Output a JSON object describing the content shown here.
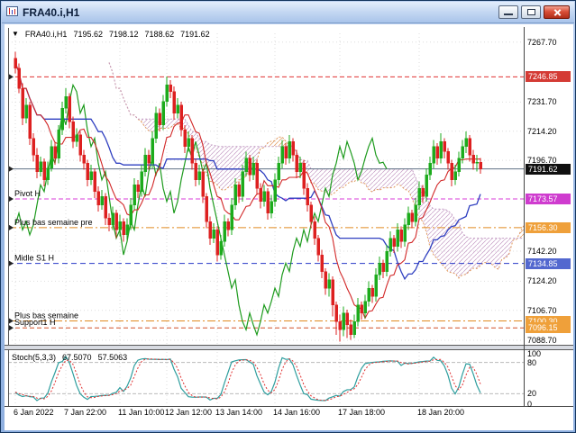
{
  "window": {
    "title": "FRA40.i,H1"
  },
  "chart": {
    "header": {
      "marker": "▼",
      "symbol": "FRA40.i,H1",
      "open": "7195.62",
      "high": "7198.12",
      "low": "7188.62",
      "close": "7191.62"
    },
    "price_axis": {
      "ticks": [
        "7267.70",
        "7231.70",
        "7214.20",
        "7196.70",
        "7142.20",
        "7124.20",
        "7106.70",
        "7088.70"
      ],
      "badges": [
        {
          "label": "7246.85",
          "bg": "#d43b35"
        },
        {
          "label": "7191.62",
          "bg": "#101010"
        },
        {
          "label": "7173.57",
          "bg": "#cf3ccf"
        },
        {
          "label": "7156.30",
          "bg": "#efa03a"
        },
        {
          "label": "7134.85",
          "bg": "#5368cf"
        },
        {
          "label": "7100.30",
          "bg": "#efa03a"
        },
        {
          "label": "7096.15",
          "bg": "#efa03a"
        }
      ]
    },
    "time_axis": [
      {
        "label": "6 Jan 2022",
        "i": 0
      },
      {
        "label": "7 Jan 22:00",
        "i": 14
      },
      {
        "label": "11 Jan 10:00",
        "i": 29
      },
      {
        "label": "12 Jan 12:00",
        "i": 42
      },
      {
        "label": "13 Jan 14:00",
        "i": 56
      },
      {
        "label": "14 Jan 16:00",
        "i": 72
      },
      {
        "label": "17 Jan 18:00",
        "i": 90
      },
      {
        "label": "18 Jan 20:00",
        "i": 112
      }
    ]
  },
  "stoch": {
    "name": "Stoch(5,3,3)",
    "value_k": "67.5070",
    "value_d": "57.5063",
    "ticks": [
      {
        "label": "100",
        "v": 100
      },
      {
        "label": "80",
        "v": 80
      },
      {
        "label": "20",
        "v": 20
      },
      {
        "label": "0",
        "v": 0
      }
    ],
    "level_lines": [
      80,
      20
    ]
  },
  "chart_data": {
    "type": "candlestick",
    "symbol": "FRA40.i",
    "timeframe": "H1",
    "ylim": [
      7086,
      7273
    ],
    "current_price": 7191.62,
    "bull_color": "#1cab1c",
    "bear_color": "#dd2020",
    "ohlc": [
      [
        7258,
        7262,
        7249,
        7252
      ],
      [
        7252,
        7255,
        7237,
        7240
      ],
      [
        7240,
        7243,
        7218,
        7222
      ],
      [
        7222,
        7234,
        7219,
        7230
      ],
      [
        7230,
        7232,
        7206,
        7210
      ],
      [
        7210,
        7213,
        7196,
        7200
      ],
      [
        7200,
        7204,
        7186,
        7190
      ],
      [
        7190,
        7199,
        7187,
        7196
      ],
      [
        7196,
        7198,
        7181,
        7185
      ],
      [
        7185,
        7196,
        7182,
        7192
      ],
      [
        7192,
        7209,
        7190,
        7205
      ],
      [
        7205,
        7208,
        7194,
        7198
      ],
      [
        7198,
        7218,
        7195,
        7215
      ],
      [
        7215,
        7232,
        7212,
        7228
      ],
      [
        7228,
        7240,
        7225,
        7235
      ],
      [
        7235,
        7237,
        7216,
        7220
      ],
      [
        7220,
        7223,
        7204,
        7208
      ],
      [
        7208,
        7216,
        7205,
        7212
      ],
      [
        7212,
        7214,
        7196,
        7200
      ],
      [
        7200,
        7203,
        7191,
        7195
      ],
      [
        7195,
        7197,
        7181,
        7185
      ],
      [
        7185,
        7194,
        7182,
        7190
      ],
      [
        7190,
        7192,
        7174,
        7178
      ],
      [
        7178,
        7181,
        7166,
        7170
      ],
      [
        7170,
        7179,
        7167,
        7175
      ],
      [
        7175,
        7177,
        7158,
        7162
      ],
      [
        7162,
        7165,
        7154,
        7158
      ],
      [
        7158,
        7169,
        7155,
        7165
      ],
      [
        7165,
        7167,
        7150,
        7155
      ],
      [
        7155,
        7164,
        7151,
        7160
      ],
      [
        7160,
        7162,
        7148,
        7152
      ],
      [
        7152,
        7162,
        7149,
        7158
      ],
      [
        7158,
        7174,
        7155,
        7170
      ],
      [
        7170,
        7186,
        7167,
        7182
      ],
      [
        7182,
        7185,
        7174,
        7178
      ],
      [
        7178,
        7194,
        7175,
        7190
      ],
      [
        7190,
        7204,
        7187,
        7200
      ],
      [
        7200,
        7203,
        7191,
        7195
      ],
      [
        7195,
        7214,
        7192,
        7210
      ],
      [
        7210,
        7229,
        7207,
        7225
      ],
      [
        7225,
        7228,
        7214,
        7218
      ],
      [
        7218,
        7236,
        7215,
        7232
      ],
      [
        7232,
        7247,
        7229,
        7242
      ],
      [
        7242,
        7245,
        7234,
        7238
      ],
      [
        7238,
        7241,
        7221,
        7225
      ],
      [
        7225,
        7234,
        7222,
        7230
      ],
      [
        7230,
        7232,
        7211,
        7215
      ],
      [
        7215,
        7218,
        7201,
        7205
      ],
      [
        7205,
        7214,
        7202,
        7210
      ],
      [
        7210,
        7212,
        7191,
        7195
      ],
      [
        7195,
        7198,
        7181,
        7185
      ],
      [
        7185,
        7194,
        7182,
        7190
      ],
      [
        7190,
        7192,
        7171,
        7175
      ],
      [
        7175,
        7177,
        7156,
        7160
      ],
      [
        7160,
        7163,
        7146,
        7150
      ],
      [
        7150,
        7159,
        7147,
        7155
      ],
      [
        7155,
        7157,
        7136,
        7140
      ],
      [
        7140,
        7152,
        7137,
        7148
      ],
      [
        7148,
        7164,
        7145,
        7160
      ],
      [
        7160,
        7162,
        7151,
        7155
      ],
      [
        7155,
        7174,
        7152,
        7170
      ],
      [
        7170,
        7186,
        7167,
        7182
      ],
      [
        7182,
        7184,
        7171,
        7175
      ],
      [
        7175,
        7194,
        7172,
        7190
      ],
      [
        7190,
        7202,
        7187,
        7198
      ],
      [
        7198,
        7200,
        7184,
        7188
      ],
      [
        7188,
        7199,
        7185,
        7195
      ],
      [
        7195,
        7197,
        7176,
        7180
      ],
      [
        7180,
        7183,
        7168,
        7172
      ],
      [
        7172,
        7182,
        7169,
        7178
      ],
      [
        7178,
        7180,
        7161,
        7165
      ],
      [
        7165,
        7176,
        7162,
        7172
      ],
      [
        7172,
        7189,
        7169,
        7185
      ],
      [
        7185,
        7199,
        7182,
        7195
      ],
      [
        7195,
        7209,
        7192,
        7205
      ],
      [
        7205,
        7207,
        7194,
        7198
      ],
      [
        7198,
        7212,
        7195,
        7208
      ],
      [
        7208,
        7210,
        7196,
        7200
      ],
      [
        7200,
        7203,
        7186,
        7190
      ],
      [
        7190,
        7199,
        7186,
        7195
      ],
      [
        7195,
        7197,
        7176,
        7180
      ],
      [
        7180,
        7183,
        7166,
        7170
      ],
      [
        7170,
        7172,
        7156,
        7160
      ],
      [
        7160,
        7163,
        7146,
        7150
      ],
      [
        7150,
        7152,
        7136,
        7140
      ],
      [
        7140,
        7143,
        7126,
        7130
      ],
      [
        7130,
        7132,
        7116,
        7120
      ],
      [
        7120,
        7129,
        7115,
        7125
      ],
      [
        7125,
        7127,
        7103,
        7110
      ],
      [
        7110,
        7112,
        7092,
        7100
      ],
      [
        7100,
        7104,
        7088,
        7095
      ],
      [
        7095,
        7109,
        7091,
        7105
      ],
      [
        7105,
        7107,
        7090,
        7098
      ],
      [
        7098,
        7101,
        7089,
        7092
      ],
      [
        7092,
        7104,
        7090,
        7100
      ],
      [
        7100,
        7114,
        7097,
        7110
      ],
      [
        7110,
        7112,
        7101,
        7105
      ],
      [
        7105,
        7116,
        7102,
        7112
      ],
      [
        7112,
        7124,
        7109,
        7120
      ],
      [
        7120,
        7122,
        7111,
        7115
      ],
      [
        7115,
        7132,
        7112,
        7128
      ],
      [
        7128,
        7139,
        7125,
        7135
      ],
      [
        7135,
        7137,
        7126,
        7130
      ],
      [
        7130,
        7146,
        7127,
        7142
      ],
      [
        7142,
        7154,
        7139,
        7150
      ],
      [
        7150,
        7152,
        7141,
        7145
      ],
      [
        7145,
        7159,
        7142,
        7155
      ],
      [
        7155,
        7157,
        7144,
        7148
      ],
      [
        7148,
        7162,
        7145,
        7158
      ],
      [
        7158,
        7169,
        7155,
        7165
      ],
      [
        7165,
        7167,
        7156,
        7160
      ],
      [
        7160,
        7174,
        7157,
        7170
      ],
      [
        7170,
        7184,
        7167,
        7180
      ],
      [
        7180,
        7182,
        7171,
        7175
      ],
      [
        7175,
        7192,
        7172,
        7188
      ],
      [
        7188,
        7199,
        7185,
        7195
      ],
      [
        7195,
        7209,
        7192,
        7205
      ],
      [
        7205,
        7207,
        7194,
        7198
      ],
      [
        7198,
        7213,
        7195,
        7208
      ],
      [
        7208,
        7210,
        7198,
        7202
      ],
      [
        7202,
        7204,
        7191,
        7195
      ],
      [
        7195,
        7197,
        7181,
        7185
      ],
      [
        7185,
        7194,
        7182,
        7190
      ],
      [
        7190,
        7202,
        7187,
        7198
      ],
      [
        7198,
        7209,
        7195,
        7205
      ],
      [
        7205,
        7214,
        7201,
        7210
      ],
      [
        7210,
        7212,
        7196,
        7200
      ],
      [
        7200,
        7203,
        7191,
        7195
      ],
      [
        7195,
        7200,
        7190,
        7195.6
      ],
      [
        7195.6,
        7198.1,
        7188.6,
        7191.6
      ]
    ],
    "ichimoku": {
      "tenkan": 9,
      "kijun": 26,
      "senkou_b": 52,
      "shift": 26,
      "tenkan_color": "#d22828",
      "kijun_color": "#2f3fc0",
      "chikou_color": "#1e9b1e",
      "span_a_color": "#e0975a",
      "span_b_color": "#c39bc3"
    },
    "levels": [
      {
        "text": "",
        "value": 7246.85,
        "color": "#e03030",
        "dash": "5,3"
      },
      {
        "text": "",
        "value": 7191.62,
        "color": "#5f7184",
        "dash": ""
      },
      {
        "text": "Pivot H",
        "value": 7173.57,
        "color": "#d83cd8",
        "dash": "5,3"
      },
      {
        "text": "Plus bas semaine pre",
        "value": 7156.3,
        "color": "#e08a20",
        "dash": "9,3,2,3"
      },
      {
        "text": "Midle S1 H",
        "value": 7134.85,
        "color": "#2838c8",
        "dash": "6,4"
      },
      {
        "text": "Plus bas semaine",
        "value": 7100.3,
        "color": "#e08a20",
        "dash": "9,3,2,3"
      },
      {
        "text": "Support1 H",
        "value": 7096.15,
        "color": "#d05028",
        "dash": "5,3"
      }
    ],
    "stochastic": {
      "k": 5,
      "d": 3,
      "slowing": 3,
      "main_color": "#2e9e9e",
      "signal_color": "#e03030"
    }
  }
}
